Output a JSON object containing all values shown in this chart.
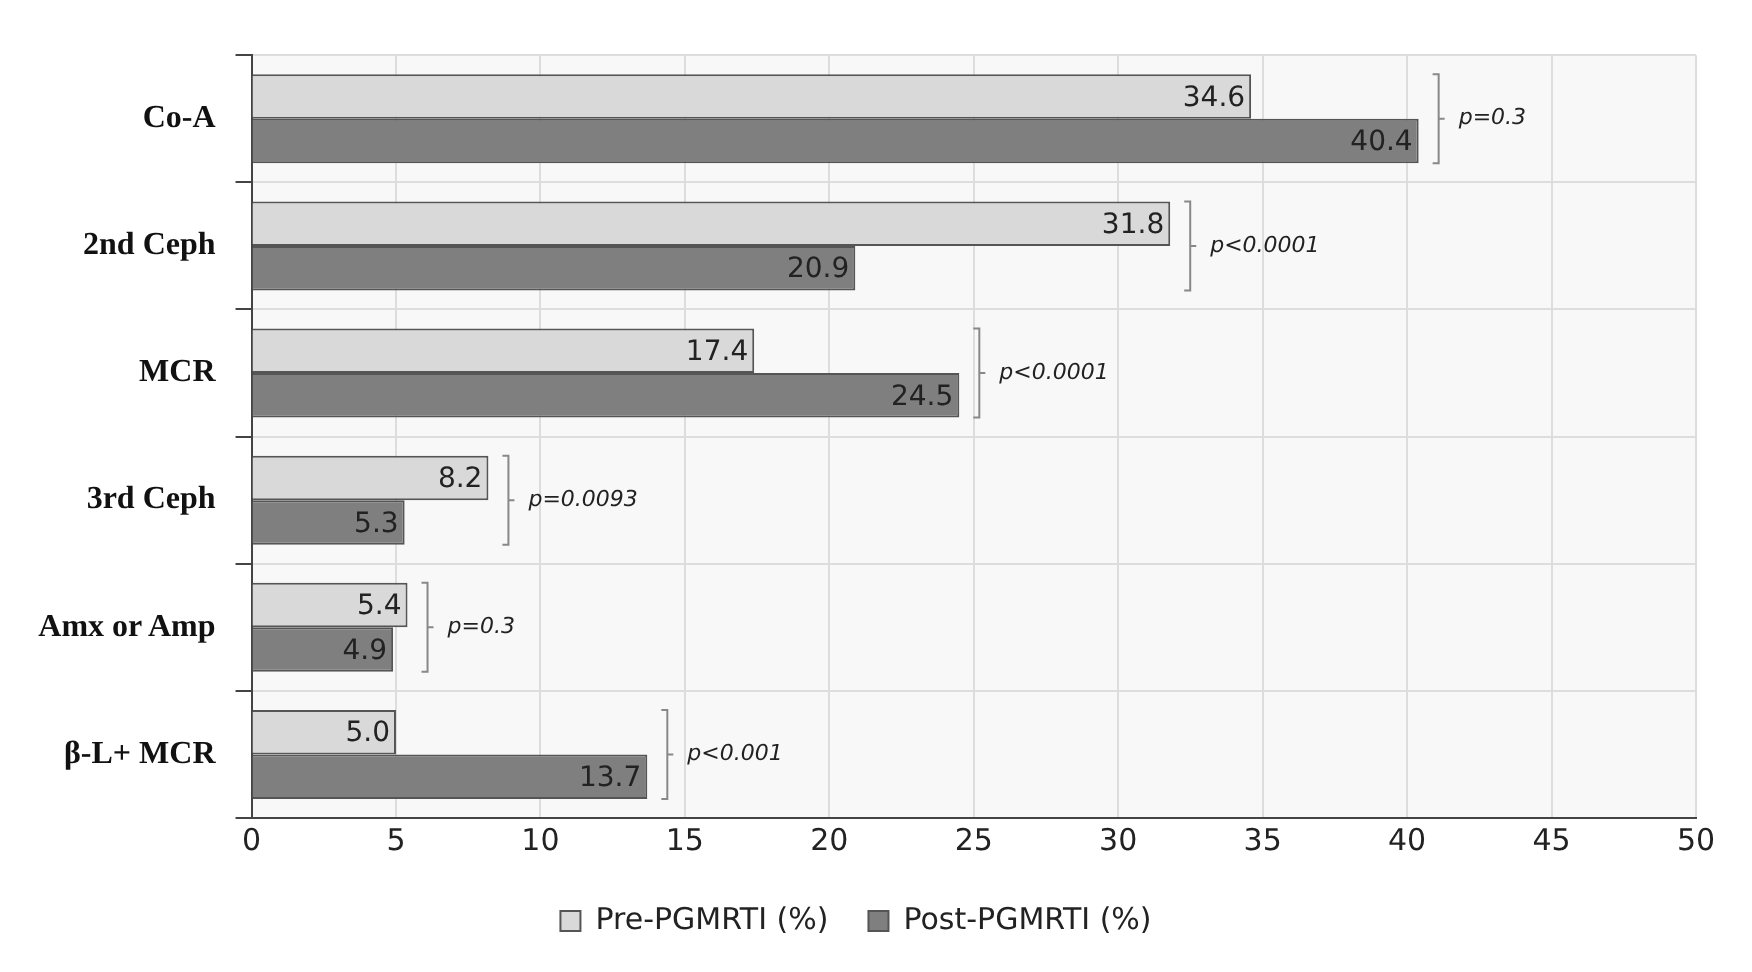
{
  "chart_data": {
    "type": "bar",
    "orientation": "horizontal",
    "categories": [
      "Co-A",
      "2nd Ceph",
      "MCR",
      "3rd Ceph",
      "Amx or Amp",
      "β-L+ MCR"
    ],
    "series": [
      {
        "name": "Pre-PGMRTI (%)",
        "color": "#d9d9d9",
        "values": [
          34.6,
          31.8,
          17.4,
          8.2,
          5.4,
          5.0
        ],
        "value_labels": [
          "34.6",
          "31.8",
          "17.4",
          "8.2",
          "5.4",
          "5.0"
        ]
      },
      {
        "name": "Post-PGMRTI (%)",
        "color": "#7f7f7f",
        "values": [
          40.4,
          20.9,
          24.5,
          5.3,
          4.9,
          13.7
        ],
        "value_labels": [
          "40.4",
          "20.9",
          "24.5",
          "5.3",
          "4.9",
          "13.7"
        ]
      }
    ],
    "xlim": [
      0,
      50
    ],
    "xticks": [
      0,
      5,
      10,
      15,
      20,
      25,
      30,
      35,
      40,
      45,
      50
    ],
    "grid": true,
    "legend": "bottom",
    "annotations": [
      "p=0.3",
      "p<0.0001",
      "p<0.0001",
      "p=0.0093",
      "p=0.3",
      "p<0.001"
    ]
  }
}
